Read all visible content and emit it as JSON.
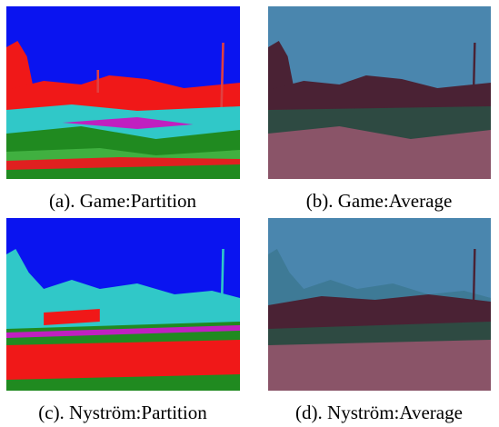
{
  "figure": {
    "panels": [
      {
        "caption": "(a). Game:Partition"
      },
      {
        "caption": "(b). Game:Average"
      },
      {
        "caption": "(c). Nyström:Partition"
      },
      {
        "caption": "(d). Nyström:Average"
      }
    ]
  }
}
